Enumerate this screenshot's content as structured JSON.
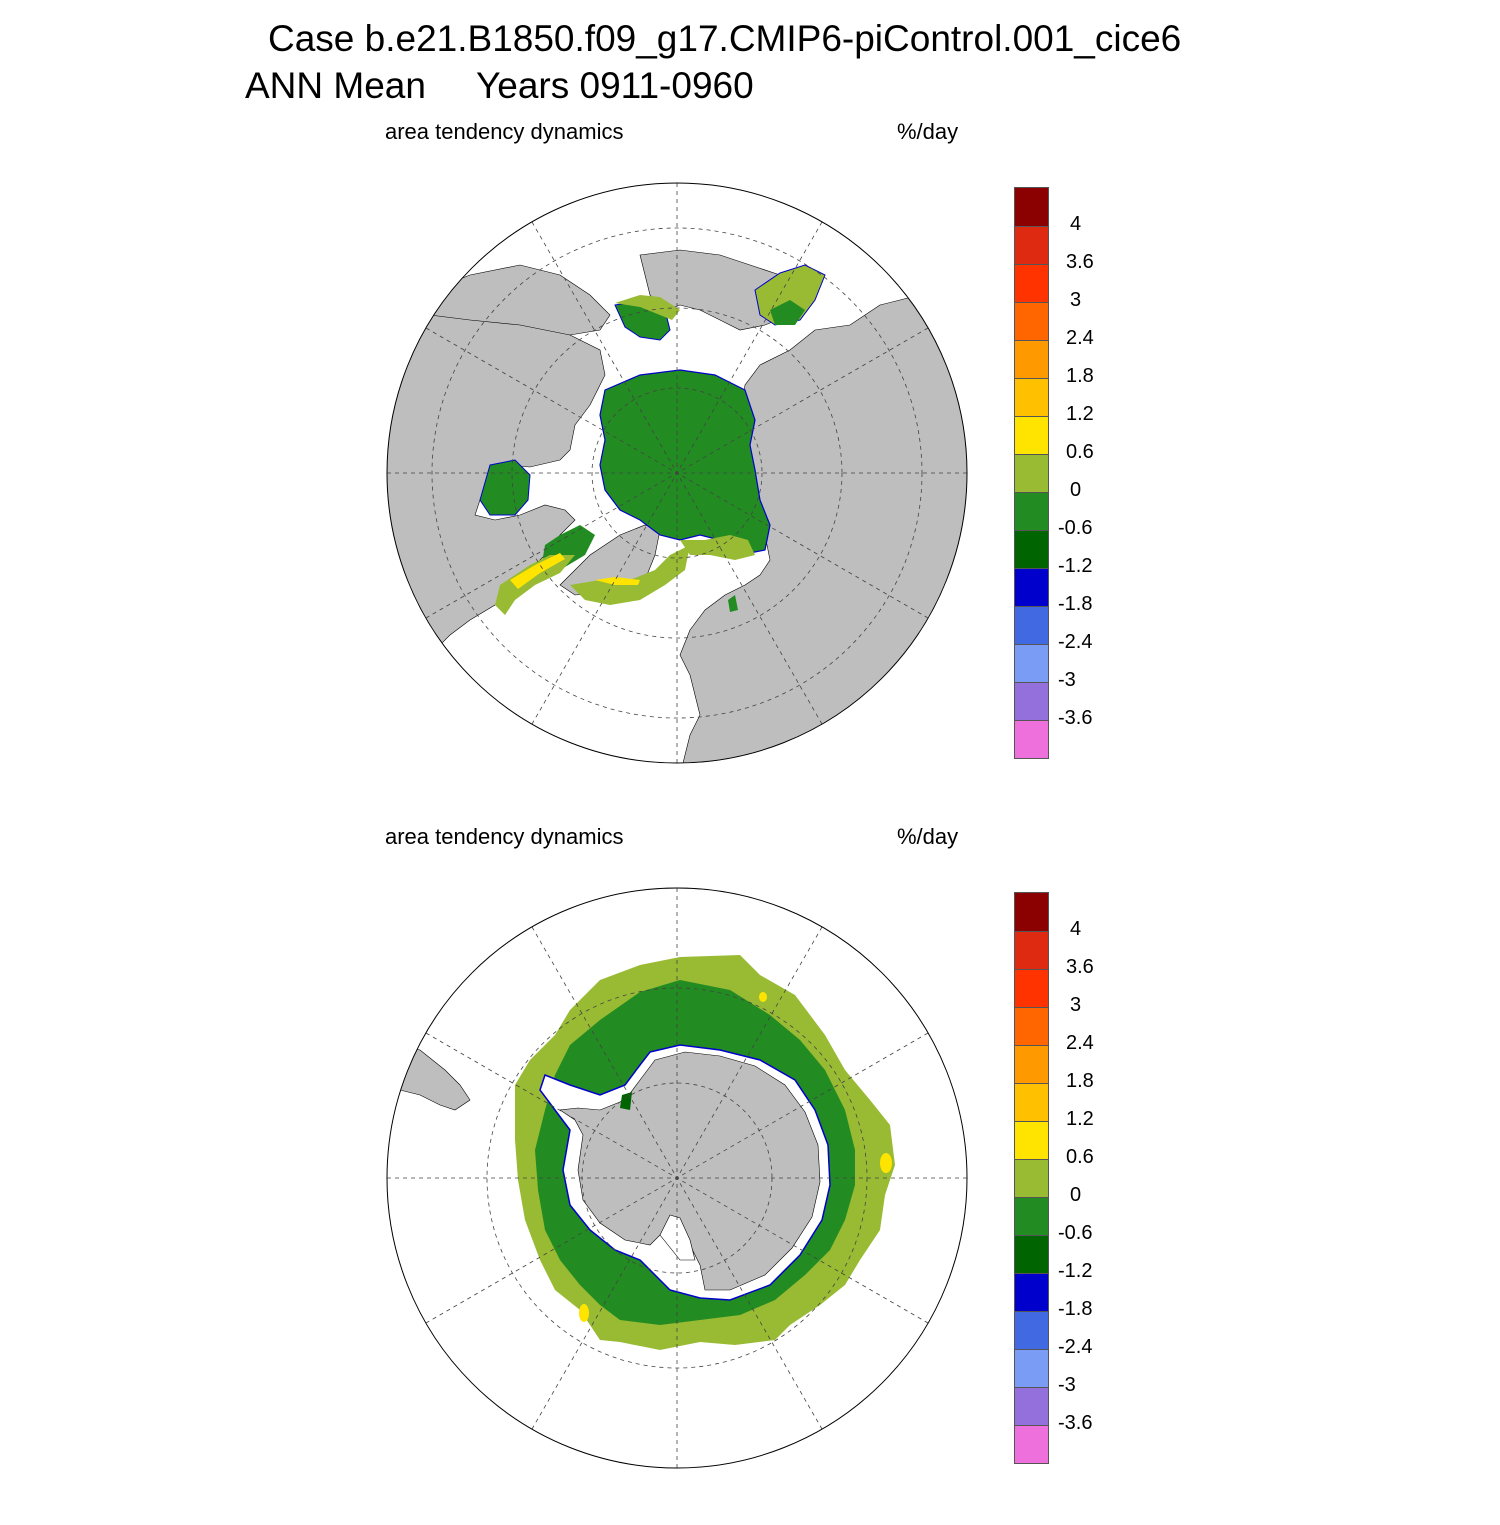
{
  "header": {
    "title_line1": "Case b.e21.B1850.f09_g17.CMIP6-piControl.001_cice6",
    "title_line2_left": "ANN Mean",
    "title_line2_right": "Years 0911-0960"
  },
  "panels": [
    {
      "id": "north",
      "left_label": "area tendency dynamics",
      "right_label": "%/day"
    },
    {
      "id": "south",
      "left_label": "area tendency dynamics",
      "right_label": "%/day"
    }
  ],
  "colorbar": {
    "labels": [
      "4",
      "3.6",
      "3",
      "2.4",
      "1.8",
      "1.2",
      "0.6",
      "0",
      "-0.6",
      "-1.2",
      "-1.8",
      "-2.4",
      "-3",
      "-3.6"
    ],
    "colors": [
      "#8b0000",
      "#dd2a10",
      "#ff3300",
      "#ff6600",
      "#ff9900",
      "#ffc000",
      "#ffe400",
      "#99bb33",
      "#228b22",
      "#006400",
      "#0000cc",
      "#4169e1",
      "#7b9cf5",
      "#9370db",
      "#ee70dd"
    ]
  },
  "colors": {
    "land": "#bebebe",
    "ocean": "#ffffff",
    "grid": "#444444"
  }
}
